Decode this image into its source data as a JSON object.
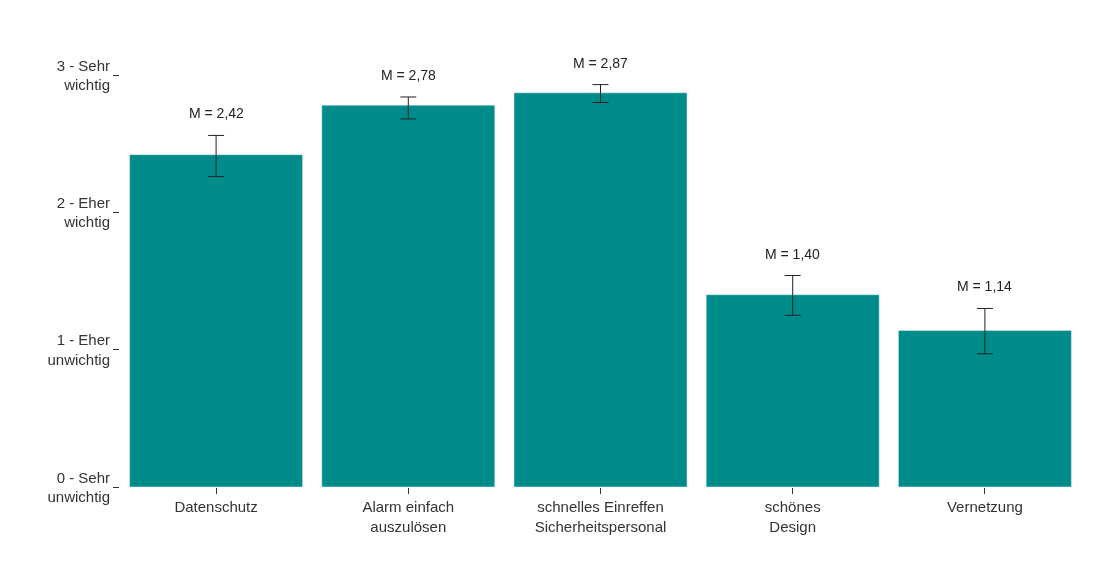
{
  "chart_data": {
    "type": "bar",
    "categories": [
      "Datenschutz",
      "Alarm einfach\nauszulösen",
      "schnelles Einreffen\nSicherheitspersonal",
      "schönes\nDesign",
      "Vernetzung"
    ],
    "values": [
      2.42,
      2.78,
      2.87,
      1.4,
      1.14
    ],
    "errors": [
      [
        2.26,
        2.56
      ],
      [
        2.68,
        2.84
      ],
      [
        2.8,
        2.93
      ],
      [
        1.25,
        1.54
      ],
      [
        0.97,
        1.3
      ]
    ],
    "value_labels": [
      "M = 2,42",
      "M = 2,78",
      "M = 2,87",
      "M = 1,40",
      "M = 1,14"
    ],
    "color": "#008b8b",
    "ylim": [
      0,
      3
    ],
    "yticks": [
      {
        "value": 0,
        "label": "0 - Sehr\nunwichtig"
      },
      {
        "value": 1,
        "label": "1 - Eher\nunwichtig"
      },
      {
        "value": 2,
        "label": "2 - Eher\nwichtig"
      },
      {
        "value": 3,
        "label": "3 - Sehr\nwichtig"
      }
    ],
    "legend": false
  }
}
